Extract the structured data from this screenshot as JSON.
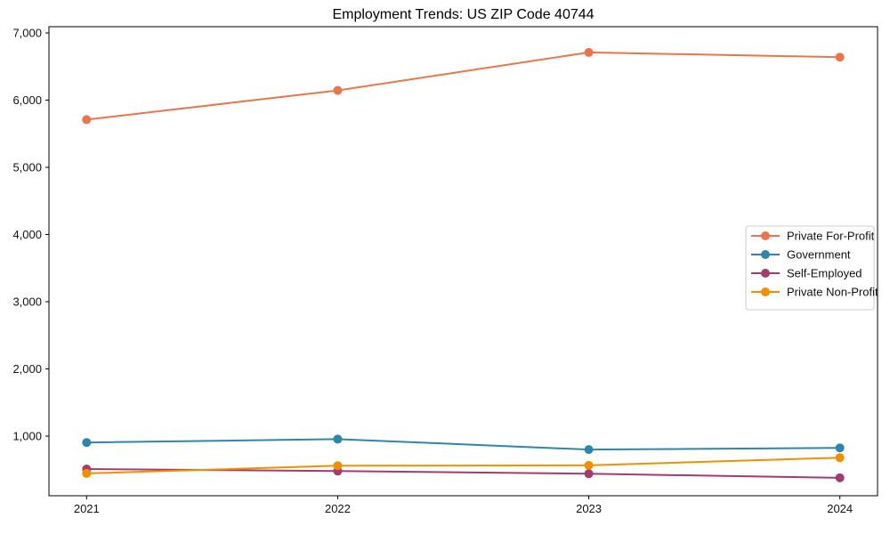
{
  "chart_data": {
    "type": "line",
    "title": "Employment Trends: US ZIP Code 40744",
    "xlabel": "",
    "ylabel": "",
    "x": [
      2021,
      2022,
      2023,
      2024
    ],
    "x_tick_labels": [
      "2021",
      "2022",
      "2023",
      "2024"
    ],
    "yticks": [
      1000,
      2000,
      3000,
      4000,
      5000,
      6000,
      7000
    ],
    "ytick_labels": [
      "1,000",
      "2,000",
      "3,000",
      "4,000",
      "5,000",
      "6,000",
      "7,000"
    ],
    "xlim": [
      2020.85,
      2024.15
    ],
    "ylim": [
      113,
      7093
    ],
    "grid": false,
    "legend_position": "center-right",
    "marker": "circle",
    "series": [
      {
        "name": "Private For-Profit",
        "color": "#E8764B",
        "values": [
          5710,
          6145,
          6710,
          6640
        ]
      },
      {
        "name": "Government",
        "color": "#2E86AB",
        "values": [
          905,
          955,
          800,
          825
        ]
      },
      {
        "name": "Self-Employed",
        "color": "#A23B72",
        "values": [
          510,
          480,
          440,
          380
        ]
      },
      {
        "name": "Private Non-Profit",
        "color": "#F18F01",
        "values": [
          445,
          560,
          565,
          680
        ]
      }
    ],
    "axis_color": "#000000",
    "tick_label_color": "#111111",
    "legend_border_color": "#cccccc",
    "legend_background": "#ffffff"
  }
}
